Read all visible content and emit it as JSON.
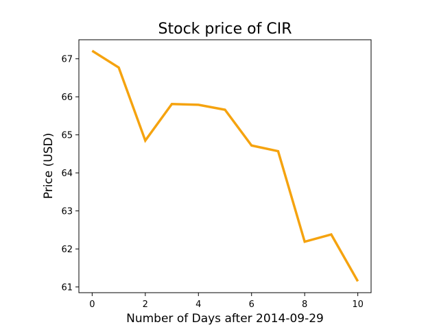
{
  "chart_data": {
    "type": "line",
    "title": "Stock price of CIR",
    "xlabel": "Number of Days after 2014-09-29",
    "ylabel": "Price (USD)",
    "x": [
      0,
      1,
      2,
      3,
      4,
      5,
      6,
      7,
      8,
      9,
      10
    ],
    "series": [
      {
        "values": [
          67.21,
          66.77,
          64.85,
          65.81,
          65.79,
          65.66,
          64.72,
          64.57,
          62.19,
          62.38,
          61.15
        ],
        "color": "#f5a30f"
      }
    ],
    "xlim": [
      -0.5,
      10.5
    ],
    "ylim": [
      60.85,
      67.5
    ],
    "xticks": [
      0,
      2,
      4,
      6,
      8,
      10
    ],
    "yticks": [
      61,
      62,
      63,
      64,
      65,
      66,
      67
    ],
    "grid": false,
    "legend": "none"
  }
}
